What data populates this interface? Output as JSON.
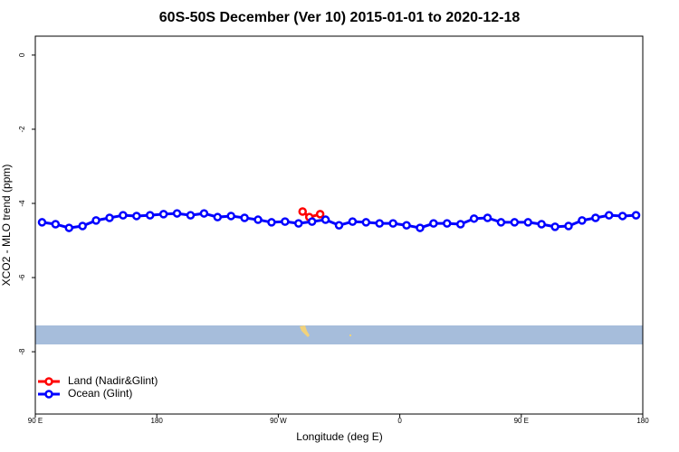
{
  "chart_data": {
    "type": "line",
    "title": "60S-50S December (Ver 10)   2015-01-01 to 2020-12-18",
    "x_label": "Longitude (deg E)",
    "y_label": "XCO2 - MLO trend (ppm)",
    "xlim": [
      90,
      540
    ],
    "xticks": [
      {
        "value": 90,
        "label": "90 E"
      },
      {
        "value": 180,
        "label": "180"
      },
      {
        "value": 270,
        "label": "90 W"
      },
      {
        "value": 360,
        "label": "0"
      },
      {
        "value": 450,
        "label": "90 E"
      },
      {
        "value": 540,
        "label": "180"
      }
    ],
    "ylim": [
      -9.68,
      0.51
    ],
    "yticks": [
      0,
      -2,
      -4,
      -6,
      -8
    ],
    "legend": "bottom-left",
    "series": [
      {
        "name": "Land (Nadir&Glint)",
        "color": "#ff0000",
        "x": [
          288,
          293,
          301
        ],
        "values": [
          -4.22,
          -4.37,
          -4.29
        ]
      },
      {
        "name": "Ocean (Glint)",
        "color": "#0000ff",
        "x": [
          95,
          105,
          115,
          125,
          135,
          145,
          155,
          165,
          175,
          185,
          195,
          205,
          215,
          225,
          235,
          245,
          255,
          265,
          275,
          285,
          295,
          305,
          315,
          325,
          335,
          345,
          355,
          365,
          375,
          385,
          395,
          405,
          415,
          425,
          435,
          445,
          455,
          465,
          475,
          485,
          495,
          505,
          515,
          525,
          535
        ],
        "values": [
          -4.51,
          -4.56,
          -4.66,
          -4.61,
          -4.46,
          -4.39,
          -4.32,
          -4.34,
          -4.32,
          -4.29,
          -4.27,
          -4.32,
          -4.27,
          -4.37,
          -4.34,
          -4.39,
          -4.44,
          -4.51,
          -4.49,
          -4.54,
          -4.49,
          -4.44,
          -4.59,
          -4.49,
          -4.51,
          -4.54,
          -4.54,
          -4.59,
          -4.66,
          -4.54,
          -4.54,
          -4.56,
          -4.41,
          -4.39,
          -4.51,
          -4.51,
          -4.51,
          -4.56,
          -4.63,
          -4.61,
          -4.46,
          -4.39,
          -4.32,
          -4.34,
          -4.32
        ]
      }
    ]
  }
}
